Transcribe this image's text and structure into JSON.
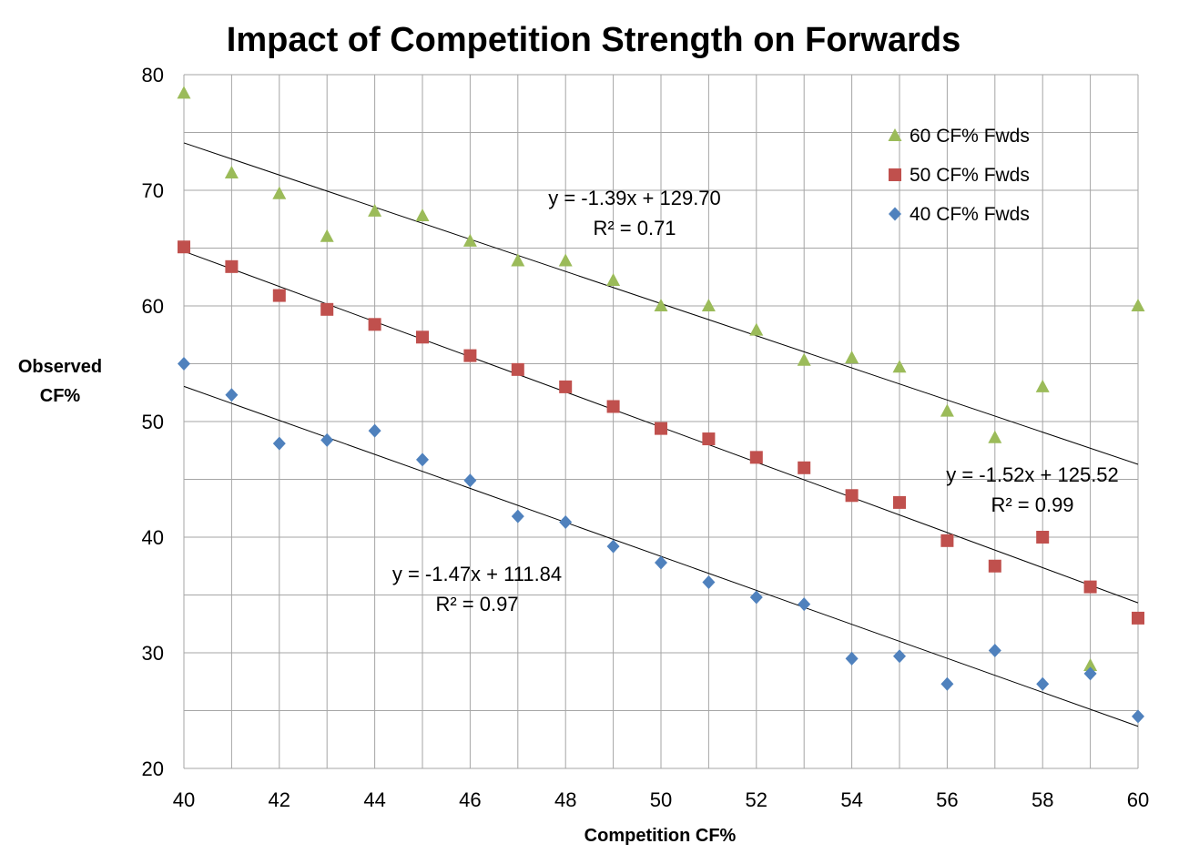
{
  "chart_data": {
    "type": "scatter",
    "title": "Impact of Competition Strength on Forwards",
    "xlabel": "Competition CF%",
    "ylabel": [
      "Observed",
      "CF%"
    ],
    "xlim": [
      40,
      60
    ],
    "ylim": [
      20,
      80
    ],
    "x_ticks": [
      "40",
      "42",
      "44",
      "46",
      "48",
      "50",
      "52",
      "54",
      "56",
      "58",
      "60"
    ],
    "y_ticks": [
      "20",
      "30",
      "40",
      "50",
      "60",
      "70",
      "80"
    ],
    "grid": true,
    "legend_position": "top-right",
    "x": [
      40,
      41,
      42,
      43,
      44,
      45,
      46,
      47,
      48,
      49,
      50,
      51,
      52,
      53,
      54,
      55,
      56,
      57,
      58,
      59,
      60
    ],
    "series": [
      {
        "name": "60 CF% Fwds",
        "marker": "triangle",
        "color": "#9BBB59",
        "values": [
          78.4,
          71.5,
          69.7,
          66.0,
          68.2,
          67.8,
          65.6,
          63.9,
          63.9,
          62.2,
          60.0,
          60.0,
          57.9,
          55.3,
          55.5,
          54.7,
          50.9,
          48.6,
          53.0,
          28.9,
          60.0
        ],
        "trendline": {
          "slope": -1.39,
          "intercept": 129.7,
          "equation": "y = -1.39x + 129.70",
          "r2": "R² = 0.71"
        }
      },
      {
        "name": "50 CF% Fwds",
        "marker": "square",
        "color": "#C0504D",
        "values": [
          65.1,
          63.4,
          60.9,
          59.7,
          58.4,
          57.3,
          55.7,
          54.5,
          53.0,
          51.3,
          49.4,
          48.5,
          46.9,
          46.0,
          43.6,
          43.0,
          39.7,
          37.5,
          40.0,
          35.7,
          33.0
        ],
        "trendline": {
          "slope": -1.52,
          "intercept": 125.52,
          "equation": "y = -1.52x + 125.52",
          "r2": "R² = 0.99"
        }
      },
      {
        "name": "40 CF% Fwds",
        "marker": "diamond",
        "color": "#4F81BD",
        "values": [
          55.0,
          52.3,
          48.1,
          48.4,
          49.2,
          46.7,
          44.9,
          41.8,
          41.3,
          39.2,
          37.8,
          36.1,
          34.8,
          34.2,
          29.5,
          29.7,
          27.3,
          30.2,
          27.3,
          28.2,
          24.5
        ],
        "trendline": {
          "slope": -1.47,
          "intercept": 111.84,
          "equation": "y = -1.47x + 111.84",
          "r2": "R² = 0.97"
        }
      }
    ]
  }
}
